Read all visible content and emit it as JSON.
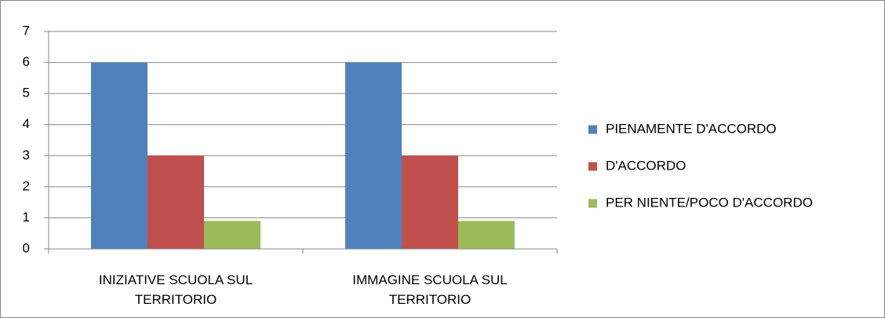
{
  "chart_data": {
    "type": "bar",
    "categories": [
      "INIZIATIVE SCUOLA SUL TERRITORIO",
      "IMMAGINE SCUOLA SUL TERRITORIO"
    ],
    "series": [
      {
        "name": "PIENAMENTE D'ACCORDO",
        "color": "#4f81bd",
        "values": [
          6,
          6
        ]
      },
      {
        "name": "D'ACCORDO",
        "color": "#c0504d",
        "values": [
          3,
          3
        ]
      },
      {
        "name": "PER NIENTE/POCO D'ACCORDO",
        "color": "#9bbb59",
        "values": [
          0.9,
          0.9
        ]
      }
    ],
    "ylim": [
      0,
      7
    ],
    "yticks": [
      0,
      1,
      2,
      3,
      4,
      5,
      6,
      7
    ],
    "grid": true,
    "legend": "right"
  }
}
